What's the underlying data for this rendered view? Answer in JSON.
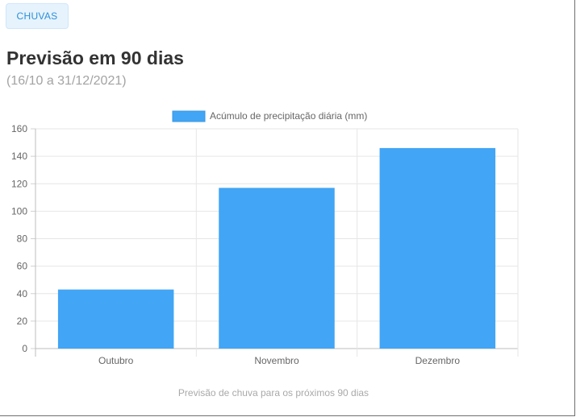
{
  "badge": {
    "label": "CHUVAS"
  },
  "header": {
    "title": "Previsão em 90 dias",
    "subtitle": "(16/10 a 31/12/2021)"
  },
  "caption": "Previsão de chuva para os próximos 90 dias",
  "colors": {
    "bar": "#42a5f5",
    "badge_bg": "#e6f3fd",
    "badge_text": "#2d8fd8",
    "grid": "#e6e6e6"
  },
  "chart_data": {
    "type": "bar",
    "categories": [
      "Outubro",
      "Novembro",
      "Dezembro"
    ],
    "series": [
      {
        "name": "Acúmulo de precipitação diária (mm)",
        "values": [
          43,
          117,
          146
        ]
      }
    ],
    "ylim": [
      0,
      160
    ],
    "yticks": [
      0,
      20,
      40,
      60,
      80,
      100,
      120,
      140,
      160
    ],
    "grid": true,
    "legend": "top-center",
    "xlabel": "",
    "ylabel": ""
  }
}
